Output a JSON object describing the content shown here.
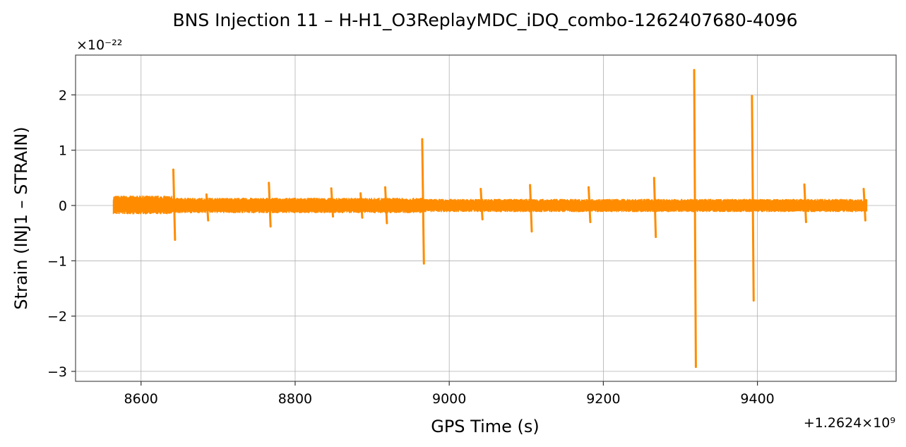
{
  "chart_data": {
    "type": "line",
    "title": "BNS Injection 11 – H-H1_O3ReplayMDC_iDQ_combo-1262407680-4096",
    "xlabel": "GPS Time (s)",
    "ylabel": "Strain (INJ1 – STRAIN)",
    "x_offset_label": "+1.2624×10⁹",
    "y_scale_label": "×10⁻²²",
    "xlim": [
      8515,
      9580
    ],
    "ylim": [
      -3.18,
      2.72
    ],
    "xticks": [
      8600,
      8800,
      9000,
      9200,
      9400
    ],
    "yticks": [
      -3,
      -2,
      -1,
      0,
      1,
      2
    ],
    "xtick_labels": [
      "8600",
      "8800",
      "9000",
      "9200",
      "9400"
    ],
    "ytick_labels": [
      "−3",
      "−2",
      "−1",
      "0",
      "1",
      "2"
    ],
    "grid": true,
    "color": "#ff8c00",
    "series": [
      {
        "segments": [
          {
            "x": [
              8564,
              8640
            ],
            "noise_high": 0.18,
            "noise_low": -0.16
          },
          {
            "x": [
              8640,
              8965
            ],
            "noise_high": 0.14,
            "noise_low": -0.14
          },
          {
            "x": [
              8965,
              9542
            ],
            "noise_high": 0.12,
            "noise_low": -0.12
          }
        ],
        "glitches": [
          {
            "x": 8643,
            "max": 0.65,
            "min": -0.62
          },
          {
            "x": 8686,
            "max": 0.2,
            "min": -0.27
          },
          {
            "x": 8767,
            "max": 0.41,
            "min": -0.38
          },
          {
            "x": 8848,
            "max": 0.31,
            "min": -0.2
          },
          {
            "x": 8886,
            "max": 0.22,
            "min": -0.22
          },
          {
            "x": 8918,
            "max": 0.33,
            "min": -0.32
          },
          {
            "x": 8966,
            "max": 1.2,
            "min": -1.05
          },
          {
            "x": 9042,
            "max": 0.3,
            "min": -0.25
          },
          {
            "x": 9106,
            "max": 0.37,
            "min": -0.47
          },
          {
            "x": 9182,
            "max": 0.33,
            "min": -0.3
          },
          {
            "x": 9267,
            "max": 0.5,
            "min": -0.57
          },
          {
            "x": 9319,
            "max": 2.45,
            "min": -2.92
          },
          {
            "x": 9394,
            "max": 1.98,
            "min": -1.72
          },
          {
            "x": 9462,
            "max": 0.38,
            "min": -0.3
          },
          {
            "x": 9539,
            "max": 0.3,
            "min": -0.27
          }
        ]
      }
    ]
  }
}
